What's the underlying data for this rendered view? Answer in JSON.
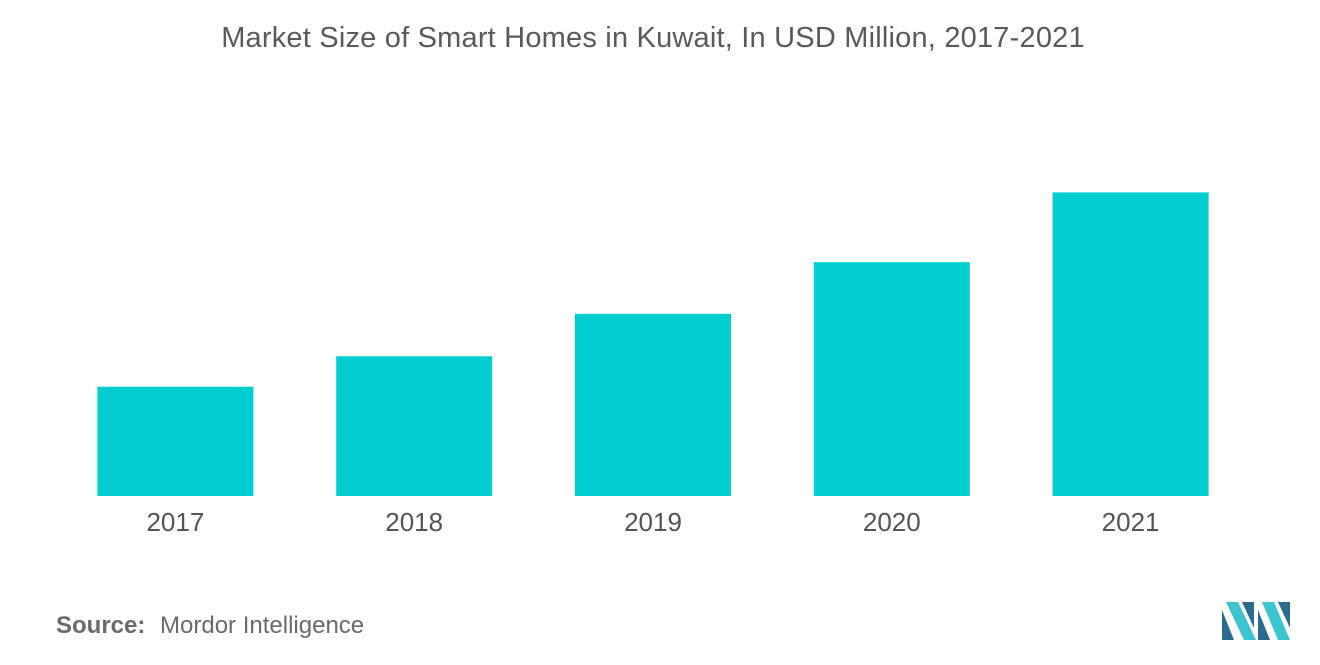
{
  "title": "Market Size of Smart Homes in Kuwait, In USD Million, 2017-2021",
  "source": {
    "label": "Source:",
    "value": "Mordor Intelligence"
  },
  "colors": {
    "bar": "#00CED1",
    "text": "#555555",
    "logo_dark": "#2B6C8E",
    "logo_light": "#3CC4D0"
  },
  "logo_icon": "mordor-intelligence-logo",
  "chart_data": {
    "type": "bar",
    "title": "Market Size of Smart Homes in Kuwait, In USD Million, 2017-2021",
    "xlabel": "",
    "ylabel": "",
    "categories": [
      "2017",
      "2018",
      "2019",
      "2020",
      "2021"
    ],
    "series": [
      {
        "values": [
          36,
          46,
          60,
          77,
          100
        ]
      }
    ],
    "ylim": [
      0,
      110
    ],
    "grid": false,
    "legend": "none",
    "value_labels": false
  }
}
